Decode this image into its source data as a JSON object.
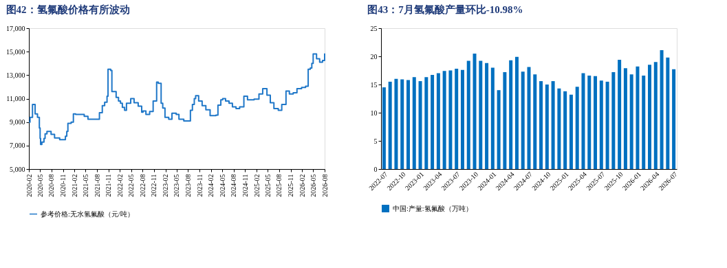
{
  "chart_data": [
    {
      "type": "step",
      "title": "图42：氢氟酸价格有所波动",
      "x": [
        "2020-02-01",
        "2020-02-10",
        "2020-03-01",
        "2020-03-22",
        "2020-04-10",
        "2020-04-25",
        "2020-05-01",
        "2020-05-05",
        "2020-05-15",
        "2020-06-01",
        "2020-06-10",
        "2020-06-25",
        "2020-07-28",
        "2020-08-25",
        "2020-10-05",
        "2020-11-20",
        "2020-12-01",
        "2020-12-10",
        "2021-01-05",
        "2021-01-23",
        "2021-02-10",
        "2021-04-20",
        "2021-05-20",
        "2021-08-20",
        "2021-09-12",
        "2021-10-01",
        "2021-10-20",
        "2021-10-28",
        "2021-11-18",
        "2021-11-28",
        "2022-01-01",
        "2022-01-20",
        "2022-02-05",
        "2022-02-20",
        "2022-03-10",
        "2022-03-25",
        "2022-04-28",
        "2022-05-25",
        "2022-06-27",
        "2022-07-25",
        "2022-08-05",
        "2022-08-28",
        "2022-09-27",
        "2022-10-25",
        "2022-11-22",
        "2022-12-05",
        "2022-12-28",
        "2023-01-10",
        "2023-01-28",
        "2023-02-27",
        "2023-03-25",
        "2023-04-28",
        "2023-05-20",
        "2023-06-28",
        "2023-08-20",
        "2023-09-05",
        "2023-09-20",
        "2023-10-01",
        "2023-10-25",
        "2023-11-22",
        "2023-12-22",
        "2024-01-25",
        "2024-03-12",
        "2024-03-28",
        "2024-04-20",
        "2024-05-05",
        "2024-05-28",
        "2024-06-25",
        "2024-07-22",
        "2024-08-20",
        "2024-09-18",
        "2024-10-22",
        "2024-11-20",
        "2025-01-12",
        "2025-02-20",
        "2025-03-22",
        "2025-04-25",
        "2025-05-22",
        "2025-06-20",
        "2025-07-25",
        "2025-08-22",
        "2025-09-25",
        "2025-10-22",
        "2025-11-22",
        "2025-12-22",
        "2026-01-28",
        "2026-03-01",
        "2026-03-22",
        "2026-04-08",
        "2026-04-20",
        "2026-05-01",
        "2026-05-28",
        "2026-06-22",
        "2026-07-15",
        "2026-08-01"
      ],
      "series": [
        {
          "name": "参考价格:无水氢氟酸（元/吨）",
          "color": "#1f77c8",
          "values": [
            9000,
            9400,
            10500,
            9700,
            9400,
            8500,
            7600,
            7100,
            7300,
            7600,
            8000,
            8200,
            7950,
            7650,
            7500,
            7800,
            8200,
            8900,
            9000,
            9700,
            9650,
            9500,
            9250,
            9800,
            10400,
            10700,
            11200,
            13500,
            13400,
            11600,
            11100,
            10800,
            10600,
            10250,
            10000,
            10600,
            11000,
            10650,
            10350,
            9850,
            9950,
            9650,
            9900,
            10800,
            12400,
            12300,
            10600,
            10200,
            9400,
            9250,
            9750,
            9650,
            9250,
            9100,
            10000,
            10500,
            11000,
            11250,
            10800,
            10400,
            10050,
            9550,
            9600,
            10450,
            10900,
            11000,
            10800,
            10600,
            10300,
            10150,
            10300,
            11200,
            10900,
            10950,
            11400,
            11850,
            11300,
            10650,
            10150,
            10000,
            10500,
            11650,
            11400,
            11500,
            11850,
            11950,
            12050,
            13500,
            13600,
            14000,
            14800,
            14400,
            14100,
            14250,
            14850
          ]
        }
      ],
      "xlim": [
        "2020-02-01",
        "2026-08-01"
      ],
      "xticks": [
        "2020-02",
        "2020-05",
        "2020-08",
        "2020-11",
        "2021-02",
        "2021-05",
        "2021-08",
        "2021-11",
        "2022-02",
        "2022-05",
        "2022-08",
        "2022-11",
        "2023-02",
        "2023-05",
        "2023-08",
        "2023-11",
        "2024-02",
        "2024-05",
        "2024-08",
        "2024-11",
        "2025-02",
        "2025-05",
        "2025-08",
        "2025-11",
        "2026-02",
        "2026-05",
        "2026-08"
      ],
      "ylim": [
        5000,
        17000
      ],
      "yticks": [
        {
          "value": 5000,
          "label": "5,000"
        },
        {
          "value": 7000,
          "label": "7,000"
        },
        {
          "value": 9000,
          "label": "9,000"
        },
        {
          "value": 11000,
          "label": "11,000"
        },
        {
          "value": 13000,
          "label": "13,000"
        },
        {
          "value": 15000,
          "label": "15,000"
        },
        {
          "value": 17000,
          "label": "17,000"
        }
      ],
      "legend": "bottom",
      "grid": false
    },
    {
      "type": "bar",
      "title": "图43：7月氢氟酸产量环比-10.98%",
      "categories": [
        "2022-07",
        null,
        null,
        "2022-10",
        null,
        null,
        "2023-01",
        null,
        null,
        "2023-04",
        null,
        null,
        "2023-07",
        null,
        null,
        "2023-10",
        null,
        null,
        "2024-01",
        null,
        null,
        "2024-04",
        null,
        null,
        "2024-07",
        null,
        null,
        "2024-10",
        null,
        null,
        "2025-01",
        null,
        null,
        "2025-04",
        null,
        null,
        "2025-07",
        null,
        null,
        "2025-10",
        null,
        null,
        "2026-01",
        null,
        null,
        "2026-04",
        null,
        null,
        "2026-07"
      ],
      "series": [
        {
          "name": "中国:产量:氢氟酸（万吨）",
          "color": "#0070c0",
          "values": [
            14.5,
            15.5,
            16.0,
            15.9,
            15.8,
            16.3,
            15.6,
            16.3,
            16.7,
            17.0,
            17.4,
            17.5,
            17.8,
            17.6,
            19.2,
            20.5,
            19.2,
            18.8,
            18.0,
            14.0,
            17.2,
            19.3,
            19.9,
            17.3,
            18.1,
            16.8,
            15.6,
            15.0,
            15.6,
            14.3,
            13.8,
            13.2,
            14.6,
            17.0,
            16.6,
            16.5,
            15.7,
            15.5,
            17.2,
            19.4,
            17.9,
            16.8,
            18.2,
            16.6,
            18.5,
            19.0,
            21.1,
            19.8,
            17.7
          ]
        }
      ],
      "ylim": [
        0,
        25
      ],
      "yticks": [
        0,
        5,
        10,
        15,
        20,
        25
      ],
      "legend": "bottom",
      "grid": false
    }
  ]
}
